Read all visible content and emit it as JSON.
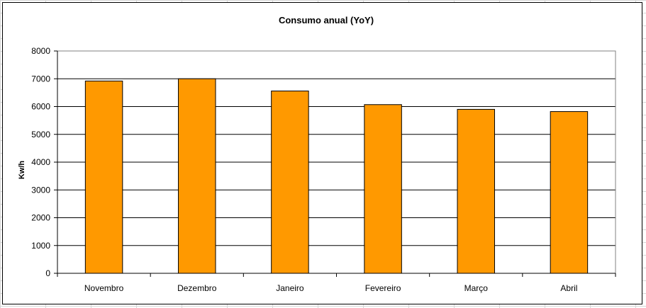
{
  "chart_data": {
    "type": "bar",
    "title": "Consumo anual (YoY)",
    "xlabel": "",
    "ylabel": "Kw/h",
    "categories": [
      "Novembro",
      "Dezembro",
      "Janeiro",
      "Fevereiro",
      "Março",
      "Abril"
    ],
    "values": [
      6920,
      7000,
      6560,
      6070,
      5900,
      5820
    ],
    "ylim": [
      0,
      8000
    ],
    "yticks": [
      "0",
      "1000",
      "2000",
      "3000",
      "4000",
      "5000",
      "6000",
      "7000",
      "8000"
    ],
    "grid": true,
    "legend": "none",
    "colors": {
      "bar": "#FF9900",
      "bar_outline": "#000000",
      "gridline": "#000000",
      "sheet_grid": "#d6d6d6"
    }
  }
}
